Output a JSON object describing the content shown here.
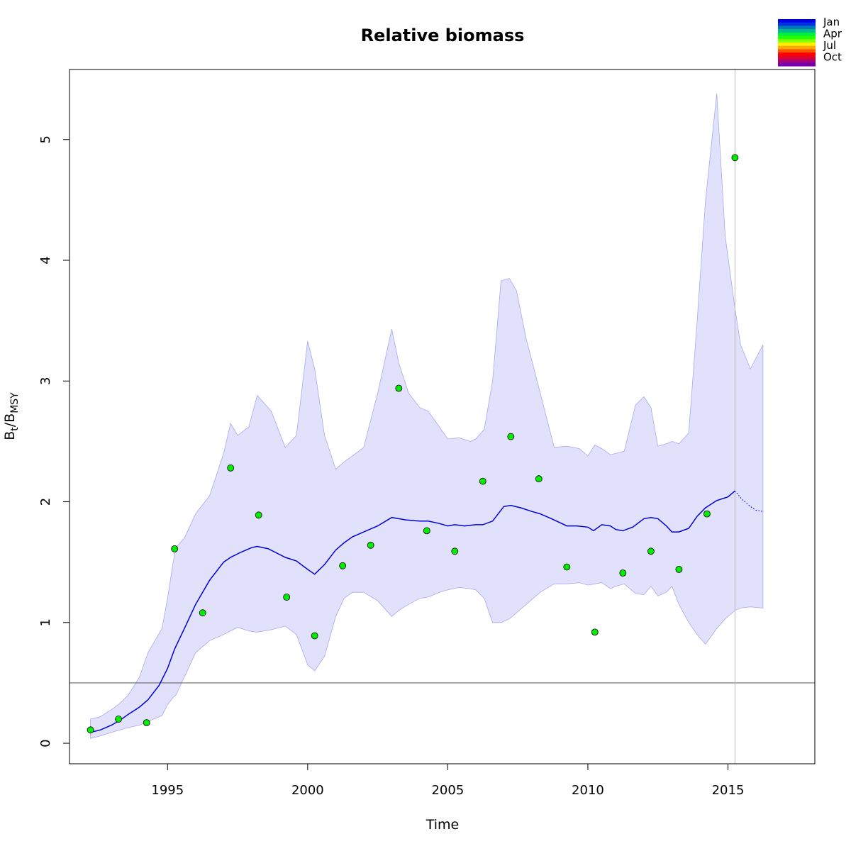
{
  "chart_data": {
    "type": "line",
    "title": "Relative biomass",
    "xlabel": "Time",
    "ylabel": {
      "main": "B",
      "sub1": "t",
      "sep": "/B",
      "sub2": "MSY"
    },
    "xlim": [
      1991.5,
      2018.1
    ],
    "ylim": [
      -0.17,
      5.58
    ],
    "x_ticks": [
      1995,
      2000,
      2005,
      2010,
      2015
    ],
    "y_ticks": [
      0,
      1,
      2,
      3,
      4,
      5
    ],
    "grid": false,
    "reference_line_y": 0.5,
    "vertical_line_x": 2015.25,
    "colors": {
      "band_fill": "#e1e1fb",
      "band_edge": "#a8a8f0",
      "line": "#0000dd",
      "points": "#00ee00",
      "reference": "#666666",
      "vline": "#bbbbbb"
    },
    "month_legend": {
      "labels": [
        "Jan",
        "Apr",
        "Jul",
        "Oct"
      ],
      "colors": [
        "#0000ee",
        "#0033dd",
        "#0077bb",
        "#00bb88",
        "#00ee44",
        "#22ff00",
        "#88ff00",
        "#ffee00",
        "#ffaa00",
        "#ff5500",
        "#ff0000",
        "#dd0033",
        "#aa0077",
        "#7700aa"
      ]
    },
    "series": [
      {
        "type": "band",
        "x": [
          1992.25,
          1992.6,
          1993.0,
          1993.3,
          1993.6,
          1994.0,
          1994.3,
          1994.8,
          1995.0,
          1995.2,
          1995.3,
          1995.6,
          1996.0,
          1996.5,
          1997.0,
          1997.25,
          1997.5,
          1997.9,
          1998.2,
          1998.7,
          1999.2,
          1999.6,
          2000.0,
          2000.25,
          2000.6,
          2001.0,
          2001.3,
          2001.6,
          2002.0,
          2002.5,
          2003.0,
          2003.25,
          2003.6,
          2004.0,
          2004.3,
          2004.7,
          2005.0,
          2005.4,
          2005.8,
          2006.0,
          2006.3,
          2006.6,
          2006.9,
          2007.2,
          2007.45,
          2007.8,
          2008.3,
          2008.8,
          2009.25,
          2009.7,
          2010.0,
          2010.25,
          2010.5,
          2010.8,
          2011.0,
          2011.3,
          2011.7,
          2012.0,
          2012.25,
          2012.5,
          2012.8,
          2013.0,
          2013.25,
          2013.6,
          2013.9,
          2014.2,
          2014.6,
          2014.9,
          2015.25,
          2015.45,
          2015.8,
          2016.25
        ],
        "upper": [
          0.2,
          0.22,
          0.28,
          0.33,
          0.4,
          0.55,
          0.75,
          0.95,
          1.2,
          1.5,
          1.62,
          1.7,
          1.9,
          2.05,
          2.4,
          2.65,
          2.55,
          2.62,
          2.88,
          2.75,
          2.45,
          2.55,
          3.33,
          3.1,
          2.55,
          2.27,
          2.33,
          2.38,
          2.45,
          2.9,
          3.43,
          3.15,
          2.9,
          2.78,
          2.75,
          2.62,
          2.52,
          2.53,
          2.5,
          2.52,
          2.6,
          3.0,
          3.83,
          3.85,
          3.75,
          3.35,
          2.9,
          2.45,
          2.46,
          2.44,
          2.38,
          2.47,
          2.44,
          2.39,
          2.4,
          2.42,
          2.8,
          2.87,
          2.78,
          2.46,
          2.48,
          2.5,
          2.48,
          2.57,
          3.5,
          4.5,
          5.38,
          4.2,
          3.6,
          3.3,
          3.1,
          3.3
        ],
        "lower": [
          0.04,
          0.06,
          0.09,
          0.11,
          0.13,
          0.15,
          0.18,
          0.23,
          0.32,
          0.38,
          0.4,
          0.55,
          0.75,
          0.85,
          0.9,
          0.93,
          0.96,
          0.93,
          0.92,
          0.94,
          0.97,
          0.9,
          0.65,
          0.6,
          0.72,
          1.05,
          1.2,
          1.25,
          1.25,
          1.18,
          1.05,
          1.1,
          1.15,
          1.2,
          1.21,
          1.25,
          1.27,
          1.29,
          1.28,
          1.27,
          1.2,
          1.0,
          1.0,
          1.03,
          1.08,
          1.15,
          1.25,
          1.32,
          1.32,
          1.33,
          1.31,
          1.32,
          1.33,
          1.28,
          1.3,
          1.32,
          1.24,
          1.23,
          1.3,
          1.22,
          1.25,
          1.3,
          1.15,
          1.0,
          0.9,
          0.82,
          0.95,
          1.03,
          1.1,
          1.12,
          1.13,
          1.12
        ]
      },
      {
        "type": "line",
        "x": [
          1992.25,
          1992.6,
          1993.0,
          1993.3,
          1993.6,
          1994.0,
          1994.3,
          1994.7,
          1995.0,
          1995.25,
          1995.6,
          1996.0,
          1996.5,
          1997.0,
          1997.25,
          1997.6,
          1998.0,
          1998.2,
          1998.6,
          1999.2,
          1999.6,
          2000.0,
          2000.25,
          2000.6,
          2001.0,
          2001.3,
          2001.6,
          2002.0,
          2002.5,
          2003.0,
          2003.25,
          2003.5,
          2004.0,
          2004.3,
          2004.7,
          2005.0,
          2005.25,
          2005.6,
          2006.0,
          2006.25,
          2006.6,
          2007.0,
          2007.25,
          2007.6,
          2008.0,
          2008.3,
          2008.7,
          2009.25,
          2009.6,
          2010.0,
          2010.2,
          2010.5,
          2010.8,
          2011.0,
          2011.25,
          2011.6,
          2012.0,
          2012.25,
          2012.5,
          2012.8,
          2013.0,
          2013.25,
          2013.6,
          2013.9,
          2014.2,
          2014.6,
          2015.0,
          2015.25
        ],
        "y": [
          0.09,
          0.11,
          0.15,
          0.19,
          0.24,
          0.3,
          0.36,
          0.48,
          0.62,
          0.78,
          0.95,
          1.15,
          1.35,
          1.5,
          1.54,
          1.58,
          1.62,
          1.63,
          1.61,
          1.54,
          1.51,
          1.44,
          1.4,
          1.48,
          1.6,
          1.66,
          1.71,
          1.75,
          1.8,
          1.87,
          1.86,
          1.85,
          1.84,
          1.84,
          1.82,
          1.8,
          1.81,
          1.8,
          1.81,
          1.81,
          1.84,
          1.96,
          1.97,
          1.95,
          1.92,
          1.9,
          1.86,
          1.8,
          1.8,
          1.79,
          1.76,
          1.81,
          1.8,
          1.77,
          1.76,
          1.79,
          1.86,
          1.87,
          1.86,
          1.8,
          1.75,
          1.75,
          1.78,
          1.88,
          1.95,
          2.01,
          2.04,
          2.09
        ]
      },
      {
        "type": "line_dotted",
        "x": [
          2015.25,
          2015.5,
          2015.8,
          2016.0,
          2016.25
        ],
        "y": [
          2.09,
          2.02,
          1.96,
          1.93,
          1.92
        ]
      },
      {
        "type": "scatter",
        "x": [
          1992.25,
          1993.25,
          1994.25,
          1995.25,
          1996.25,
          1997.25,
          1998.25,
          1999.25,
          2000.25,
          2001.25,
          2002.25,
          2003.25,
          2004.25,
          2005.25,
          2006.25,
          2007.25,
          2008.25,
          2009.25,
          2010.25,
          2011.25,
          2012.25,
          2013.25,
          2014.25,
          2015.25
        ],
        "y": [
          0.11,
          0.2,
          0.17,
          1.61,
          1.08,
          2.28,
          1.89,
          1.21,
          0.89,
          1.47,
          1.64,
          2.94,
          1.76,
          1.59,
          2.17,
          2.54,
          2.19,
          1.46,
          0.92,
          1.41,
          1.59,
          1.44,
          1.9,
          4.85
        ]
      }
    ]
  }
}
